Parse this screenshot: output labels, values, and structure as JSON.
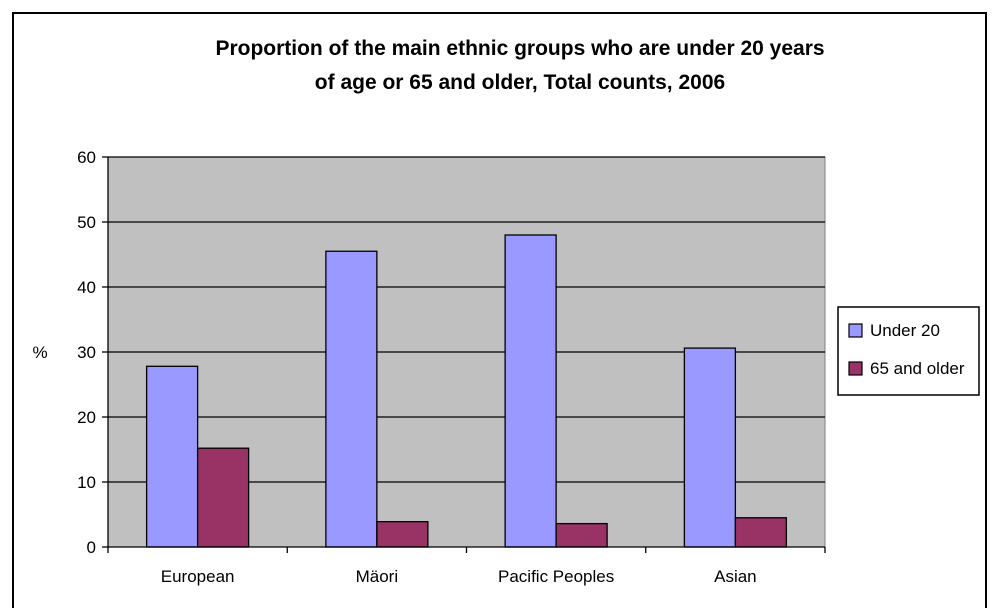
{
  "chart_data": {
    "type": "bar",
    "title_lines": [
      "Proportion of the main ethnic groups who are under 20 years",
      "of age or 65 and older, Total counts, 2006"
    ],
    "xlabel": "",
    "ylabel": "%",
    "categories": [
      "European",
      "Mäori",
      "Pacific Peoples",
      "Asian"
    ],
    "series": [
      {
        "name": "Under 20",
        "values": [
          27.8,
          45.5,
          48.0,
          30.6
        ],
        "color": "#9999ff"
      },
      {
        "name": "65 and older",
        "values": [
          15.2,
          3.9,
          3.6,
          4.5
        ],
        "color": "#993366"
      }
    ],
    "ylim": [
      0,
      60
    ],
    "yticks": [
      0,
      10,
      20,
      30,
      40,
      50,
      60
    ],
    "grid": true,
    "legend": "right",
    "plot_background": "#c0c0c0"
  }
}
